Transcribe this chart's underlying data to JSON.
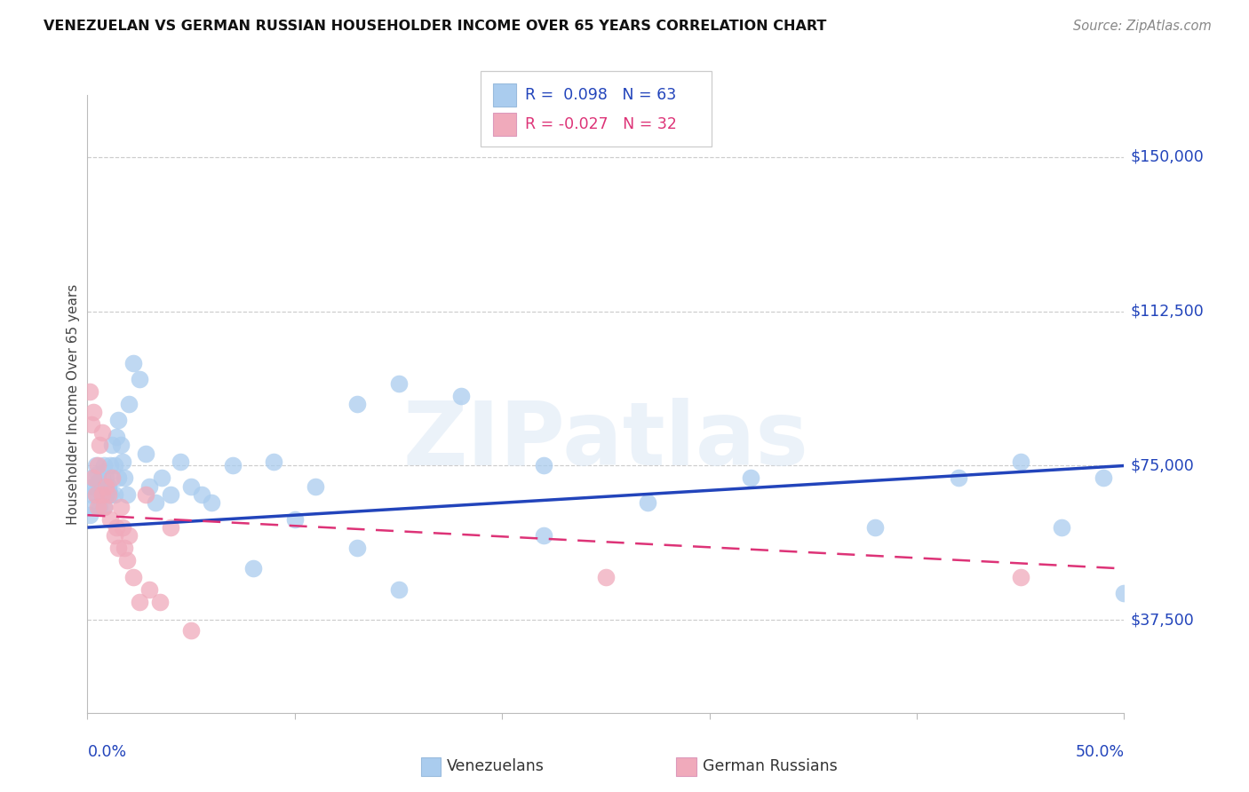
{
  "title": "VENEZUELAN VS GERMAN RUSSIAN HOUSEHOLDER INCOME OVER 65 YEARS CORRELATION CHART",
  "source": "Source: ZipAtlas.com",
  "ylabel": "Householder Income Over 65 years",
  "xlim": [
    0.0,
    0.5
  ],
  "ylim": [
    15000,
    165000
  ],
  "ytick_values": [
    37500,
    75000,
    112500,
    150000
  ],
  "ytick_labels": [
    "$37,500",
    "$75,000",
    "$112,500",
    "$150,000"
  ],
  "xtick_label_left": "0.0%",
  "xtick_label_right": "50.0%",
  "color_ven": "#aaccee",
  "color_ger": "#f0aabb",
  "color_ven_line": "#2244bb",
  "color_ger_line": "#dd3377",
  "ven_r": "0.098",
  "ven_n": "63",
  "ger_r": "-0.027",
  "ger_n": "32",
  "watermark": "ZIPatlas",
  "ven_label": "Venezuelans",
  "ger_label": "German Russians",
  "ven_trend_y0": 60000,
  "ven_trend_y1": 75000,
  "ger_trend_y0": 63000,
  "ger_trend_y1": 50000,
  "ven_x": [
    0.001,
    0.002,
    0.002,
    0.003,
    0.003,
    0.004,
    0.004,
    0.005,
    0.005,
    0.006,
    0.006,
    0.007,
    0.007,
    0.008,
    0.008,
    0.009,
    0.009,
    0.01,
    0.01,
    0.011,
    0.011,
    0.012,
    0.013,
    0.013,
    0.014,
    0.015,
    0.015,
    0.016,
    0.017,
    0.018,
    0.019,
    0.02,
    0.022,
    0.025,
    0.028,
    0.03,
    0.033,
    0.036,
    0.04,
    0.045,
    0.05,
    0.055,
    0.06,
    0.07,
    0.08,
    0.09,
    0.1,
    0.11,
    0.13,
    0.15,
    0.18,
    0.22,
    0.27,
    0.32,
    0.38,
    0.42,
    0.45,
    0.47,
    0.49,
    0.5,
    0.13,
    0.15,
    0.22
  ],
  "ven_y": [
    63000,
    68000,
    72000,
    65000,
    70000,
    75000,
    68000,
    71000,
    73000,
    65000,
    69000,
    72000,
    68000,
    75000,
    65000,
    68000,
    72000,
    70000,
    69000,
    75000,
    68000,
    80000,
    75000,
    68000,
    82000,
    72000,
    86000,
    80000,
    76000,
    72000,
    68000,
    90000,
    100000,
    96000,
    78000,
    70000,
    66000,
    72000,
    68000,
    76000,
    70000,
    68000,
    66000,
    75000,
    50000,
    76000,
    62000,
    70000,
    90000,
    95000,
    92000,
    75000,
    66000,
    72000,
    60000,
    72000,
    76000,
    60000,
    72000,
    44000,
    55000,
    45000,
    58000
  ],
  "ger_x": [
    0.001,
    0.002,
    0.003,
    0.003,
    0.004,
    0.005,
    0.005,
    0.006,
    0.007,
    0.008,
    0.009,
    0.01,
    0.011,
    0.012,
    0.013,
    0.014,
    0.015,
    0.016,
    0.017,
    0.018,
    0.019,
    0.02,
    0.022,
    0.025,
    0.028,
    0.03,
    0.035,
    0.04,
    0.05,
    0.25,
    0.45,
    0.007
  ],
  "ger_y": [
    93000,
    85000,
    88000,
    72000,
    68000,
    65000,
    75000,
    80000,
    68000,
    65000,
    70000,
    68000,
    62000,
    72000,
    58000,
    60000,
    55000,
    65000,
    60000,
    55000,
    52000,
    58000,
    48000,
    42000,
    68000,
    45000,
    42000,
    60000,
    35000,
    48000,
    48000,
    83000
  ]
}
